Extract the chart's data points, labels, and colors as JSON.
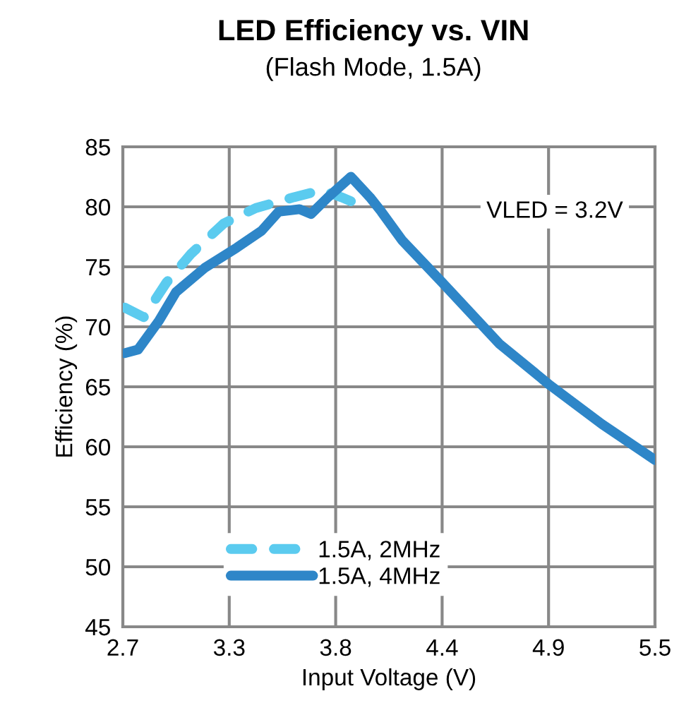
{
  "chart_data": {
    "type": "line",
    "title": "LED Efficiency vs. VIN",
    "subtitle": "(Flash Mode, 1.5A)",
    "xlabel": "Input Voltage (V)",
    "ylabel": "Efficiency (%)",
    "xlim": [
      2.7,
      5.5
    ],
    "ylim": [
      45,
      85
    ],
    "xticks": [
      2.7,
      {
        "value": 3.26,
        "label": "3.3"
      },
      {
        "value": 3.82,
        "label": "3.8"
      },
      {
        "value": 4.38,
        "label": "4.4"
      },
      {
        "value": 4.94,
        "label": "4.9"
      },
      5.5
    ],
    "yticks": [
      45,
      50,
      55,
      60,
      65,
      70,
      75,
      80,
      85
    ],
    "grid": true,
    "legend": "bottom",
    "marker": "none",
    "annotations": [
      "VLED = 3.2V"
    ],
    "series": [
      {
        "name": "1.5A, 2MHz",
        "color": "#5bcbef",
        "line_style": "dashed",
        "x": [
          2.71,
          2.81,
          2.93,
          3.06,
          3.23,
          3.4,
          3.6,
          3.75,
          3.85,
          3.91,
          3.97
        ],
        "values": [
          71.6,
          70.8,
          73.7,
          76.1,
          78.6,
          79.9,
          80.8,
          81.4,
          80.8,
          80.4,
          81.0
        ]
      },
      {
        "name": "1.5A, 4MHz",
        "color": "#2e86c8",
        "line_style": "solid",
        "x": [
          2.71,
          2.78,
          2.89,
          2.98,
          3.13,
          3.3,
          3.43,
          3.52,
          3.63,
          3.69,
          3.78,
          3.9,
          4.0,
          4.06,
          4.17,
          4.38,
          4.68,
          4.95,
          5.22,
          5.5
        ],
        "values": [
          67.8,
          68.1,
          70.5,
          72.9,
          74.9,
          76.6,
          78.0,
          79.6,
          79.8,
          79.4,
          80.8,
          82.5,
          80.8,
          79.6,
          77.2,
          73.7,
          68.6,
          65.1,
          61.9,
          58.9
        ]
      }
    ]
  }
}
